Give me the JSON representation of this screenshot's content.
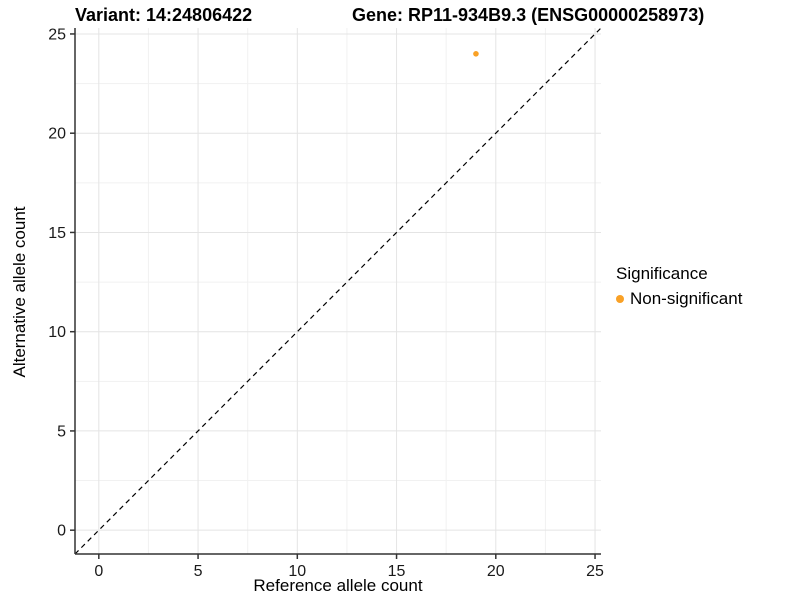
{
  "titles": {
    "variant": "Variant: 14:24806422",
    "gene": "Gene: RP11-934B9.3 (ENSG00000258973)"
  },
  "legend": {
    "title": "Significance",
    "items": [
      {
        "label": "Non-significant",
        "color": "#F9A126"
      }
    ]
  },
  "colors": {
    "point_orange": "#F9A126",
    "grid_major": "#E4E4E4",
    "grid_minor": "#F1F1F1",
    "axis_line": "#333333",
    "tick_text": "#1a1a1a",
    "reference_line": "#000000"
  },
  "chart_data": {
    "type": "scatter",
    "title": "",
    "xlabel": "Reference allele count",
    "ylabel": "Alternative allele count",
    "xlim": [
      -1.2,
      25.3
    ],
    "ylim": [
      -1.2,
      25.3
    ],
    "x_ticks": [
      0,
      5,
      10,
      15,
      20,
      25
    ],
    "y_ticks": [
      0,
      5,
      10,
      15,
      20,
      25
    ],
    "x_minor_ticks": [
      2.5,
      7.5,
      12.5,
      17.5,
      22.5
    ],
    "y_minor_ticks": [
      2.5,
      7.5,
      12.5,
      17.5,
      22.5
    ],
    "grid": true,
    "legend_position": "right",
    "series": [
      {
        "name": "Non-significant",
        "color": "#F9A126",
        "points": [
          {
            "x": 19,
            "y": 24
          }
        ]
      }
    ],
    "reference_line": {
      "equation": "y = x",
      "style": "dashed",
      "color": "#000000"
    }
  }
}
